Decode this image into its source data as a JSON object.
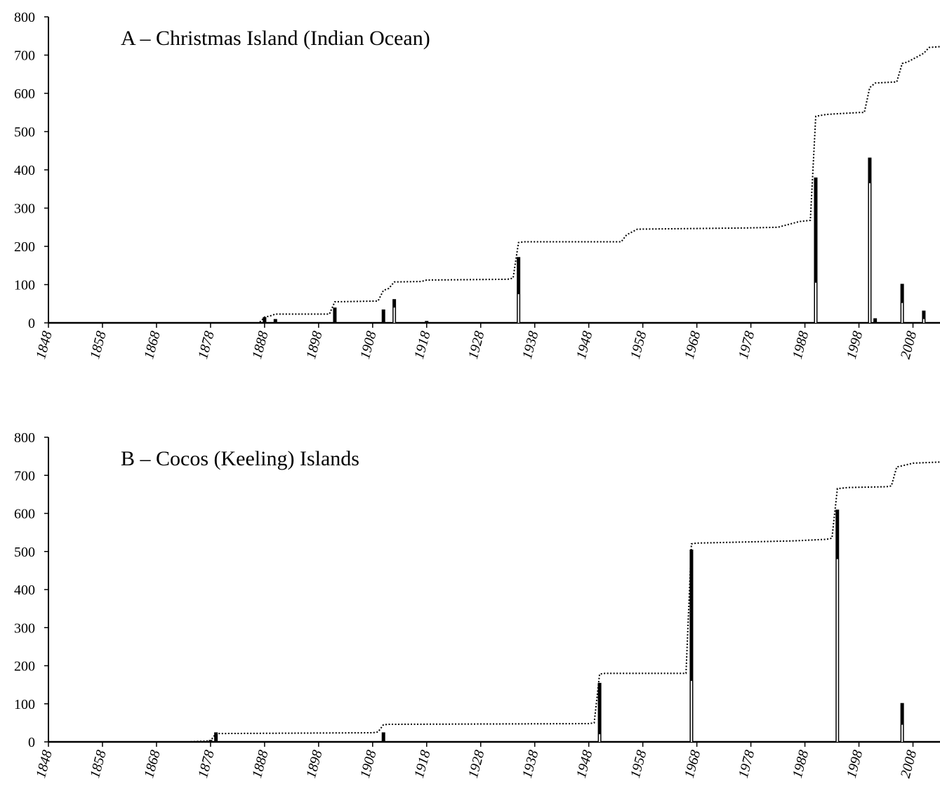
{
  "chart_data": [
    {
      "type": "bar",
      "title": "A – Christmas Island (Indian Ocean)",
      "xlabel": "",
      "ylabel": "",
      "ylim": [
        0,
        800
      ],
      "yticks": [
        0,
        100,
        200,
        300,
        400,
        500,
        600,
        700,
        800
      ],
      "xlim": [
        1848,
        2013
      ],
      "xticks": [
        1848,
        1858,
        1868,
        1878,
        1888,
        1898,
        1908,
        1918,
        1928,
        1938,
        1948,
        1958,
        1968,
        1978,
        1988,
        1998,
        2008
      ],
      "bars": [
        {
          "year": 1888,
          "total": 15,
          "lower": 0
        },
        {
          "year": 1890,
          "total": 10,
          "lower": 0
        },
        {
          "year": 1901,
          "total": 40,
          "lower": 0
        },
        {
          "year": 1910,
          "total": 35,
          "lower": 0
        },
        {
          "year": 1912,
          "total": 62,
          "lower": 40
        },
        {
          "year": 1918,
          "total": 5,
          "lower": 0
        },
        {
          "year": 1935,
          "total": 172,
          "lower": 75
        },
        {
          "year": 1990,
          "total": 380,
          "lower": 105
        },
        {
          "year": 2000,
          "total": 432,
          "lower": 365
        },
        {
          "year": 2001,
          "total": 12,
          "lower": 0
        },
        {
          "year": 2006,
          "total": 102,
          "lower": 52
        },
        {
          "year": 2010,
          "total": 32,
          "lower": 10
        }
      ],
      "cumulative": {
        "style": "dotted",
        "points": [
          [
            1848,
            0
          ],
          [
            1887,
            0
          ],
          [
            1888,
            15
          ],
          [
            1889,
            18
          ],
          [
            1890,
            23
          ],
          [
            1900,
            23
          ],
          [
            1901,
            55
          ],
          [
            1909,
            57
          ],
          [
            1910,
            85
          ],
          [
            1911,
            90
          ],
          [
            1912,
            107
          ],
          [
            1917,
            108
          ],
          [
            1918,
            112
          ],
          [
            1933,
            114
          ],
          [
            1934,
            117
          ],
          [
            1935,
            210
          ],
          [
            1936,
            212
          ],
          [
            1954,
            212
          ],
          [
            1955,
            230
          ],
          [
            1957,
            245
          ],
          [
            1977,
            248
          ],
          [
            1983,
            250
          ],
          [
            1987,
            265
          ],
          [
            1989,
            268
          ],
          [
            1990,
            540
          ],
          [
            1992,
            545
          ],
          [
            1998,
            550
          ],
          [
            1999,
            550
          ],
          [
            2000,
            615
          ],
          [
            2001,
            627
          ],
          [
            2005,
            630
          ],
          [
            2006,
            678
          ],
          [
            2007,
            682
          ],
          [
            2009,
            697
          ],
          [
            2010,
            705
          ],
          [
            2011,
            720
          ],
          [
            2013,
            722
          ]
        ]
      }
    },
    {
      "type": "bar",
      "title": "B – Cocos (Keeling) Islands",
      "xlabel": "",
      "ylabel": "",
      "ylim": [
        0,
        800
      ],
      "yticks": [
        0,
        100,
        200,
        300,
        400,
        500,
        600,
        700,
        800
      ],
      "xlim": [
        1848,
        2013
      ],
      "xticks": [
        1848,
        1858,
        1868,
        1878,
        1888,
        1898,
        1908,
        1918,
        1928,
        1938,
        1948,
        1958,
        1968,
        1978,
        1988,
        1998,
        2008
      ],
      "bars": [
        {
          "year": 1878,
          "total": 5,
          "lower": 0
        },
        {
          "year": 1879,
          "total": 25,
          "lower": 0
        },
        {
          "year": 1910,
          "total": 25,
          "lower": 0
        },
        {
          "year": 1950,
          "total": 155,
          "lower": 20
        },
        {
          "year": 1967,
          "total": 505,
          "lower": 160
        },
        {
          "year": 1994,
          "total": 610,
          "lower": 480
        },
        {
          "year": 2006,
          "total": 102,
          "lower": 45
        }
      ],
      "cumulative": {
        "style": "dotted",
        "points": [
          [
            1848,
            0
          ],
          [
            1874,
            0
          ],
          [
            1878,
            3
          ],
          [
            1879,
            22
          ],
          [
            1880,
            22
          ],
          [
            1908,
            24
          ],
          [
            1909,
            26
          ],
          [
            1910,
            45
          ],
          [
            1911,
            46
          ],
          [
            1948,
            48
          ],
          [
            1949,
            50
          ],
          [
            1950,
            178
          ],
          [
            1951,
            180
          ],
          [
            1966,
            180
          ],
          [
            1967,
            520
          ],
          [
            1968,
            522
          ],
          [
            1986,
            528
          ],
          [
            1992,
            532
          ],
          [
            1993,
            535
          ],
          [
            1994,
            665
          ],
          [
            1996,
            668
          ],
          [
            2003,
            670
          ],
          [
            2004,
            672
          ],
          [
            2005,
            722
          ],
          [
            2006,
            725
          ],
          [
            2008,
            732
          ],
          [
            2013,
            735
          ]
        ]
      }
    }
  ]
}
